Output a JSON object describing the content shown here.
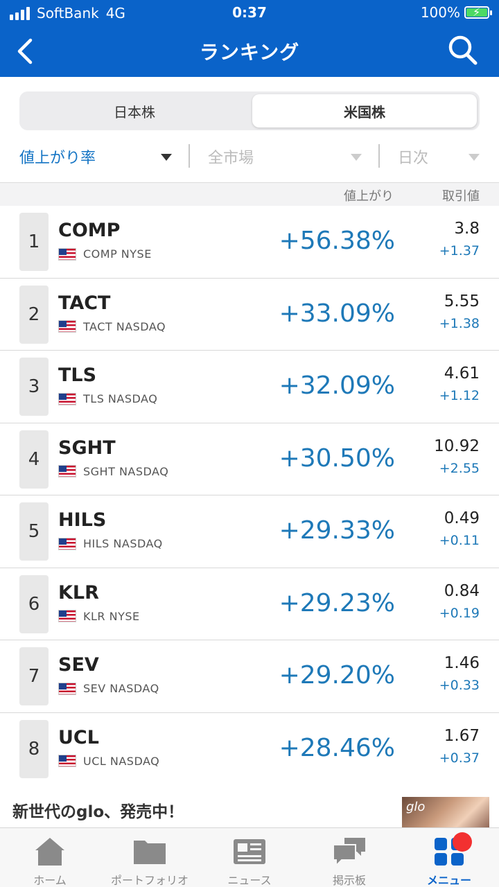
{
  "status_bar": {
    "carrier": "SoftBank",
    "network": "4G",
    "time": "0:37",
    "battery": "100%",
    "battery_level": 1.0
  },
  "nav": {
    "title": "ランキング",
    "back_icon": "chevron-left-icon",
    "search_icon": "search-icon"
  },
  "market_tabs": [
    {
      "label": "日本株",
      "selected": false
    },
    {
      "label": "米国株",
      "selected": true
    }
  ],
  "filters": {
    "ranking_type": "値上がり率",
    "market": "全市場",
    "period": "日次"
  },
  "table_header": {
    "change_col": "値上がり",
    "price_col": "取引値"
  },
  "rows": [
    {
      "rank": "1",
      "ticker": "COMP",
      "exchange_line": "COMP NYSE",
      "change_pct": "+56.38%",
      "price": "3.8",
      "change": "+1.37"
    },
    {
      "rank": "2",
      "ticker": "TACT",
      "exchange_line": "TACT NASDAQ",
      "change_pct": "+33.09%",
      "price": "5.55",
      "change": "+1.38"
    },
    {
      "rank": "3",
      "ticker": "TLS",
      "exchange_line": "TLS NASDAQ",
      "change_pct": "+32.09%",
      "price": "4.61",
      "change": "+1.12"
    },
    {
      "rank": "4",
      "ticker": "SGHT",
      "exchange_line": "SGHT NASDAQ",
      "change_pct": "+30.50%",
      "price": "10.92",
      "change": "+2.55"
    },
    {
      "rank": "5",
      "ticker": "HILS",
      "exchange_line": "HILS NASDAQ",
      "change_pct": "+29.33%",
      "price": "0.49",
      "change": "+0.11"
    },
    {
      "rank": "6",
      "ticker": "KLR",
      "exchange_line": "KLR NYSE",
      "change_pct": "+29.23%",
      "price": "0.84",
      "change": "+0.19"
    },
    {
      "rank": "7",
      "ticker": "SEV",
      "exchange_line": "SEV NASDAQ",
      "change_pct": "+29.20%",
      "price": "1.46",
      "change": "+0.33"
    },
    {
      "rank": "8",
      "ticker": "UCL",
      "exchange_line": "UCL NASDAQ",
      "change_pct": "+28.46%",
      "price": "1.67",
      "change": "+0.37"
    }
  ],
  "ad": {
    "text": "新世代のglo、発売中！",
    "image_text": "glo"
  },
  "tabbar": [
    {
      "label": "ホーム",
      "icon": "home-icon",
      "active": false
    },
    {
      "label": "ポートフォリオ",
      "icon": "folder-icon",
      "active": false
    },
    {
      "label": "ニュース",
      "icon": "newspaper-icon",
      "active": false
    },
    {
      "label": "掲示板",
      "icon": "chat-bubbles-icon",
      "active": false
    },
    {
      "label": "メニュー",
      "icon": "grid-menu-icon",
      "active": true
    }
  ],
  "colors": {
    "header_blue": "#0a63c9",
    "accent_blue": "#1e79b8",
    "badge_red": "#f23030"
  }
}
